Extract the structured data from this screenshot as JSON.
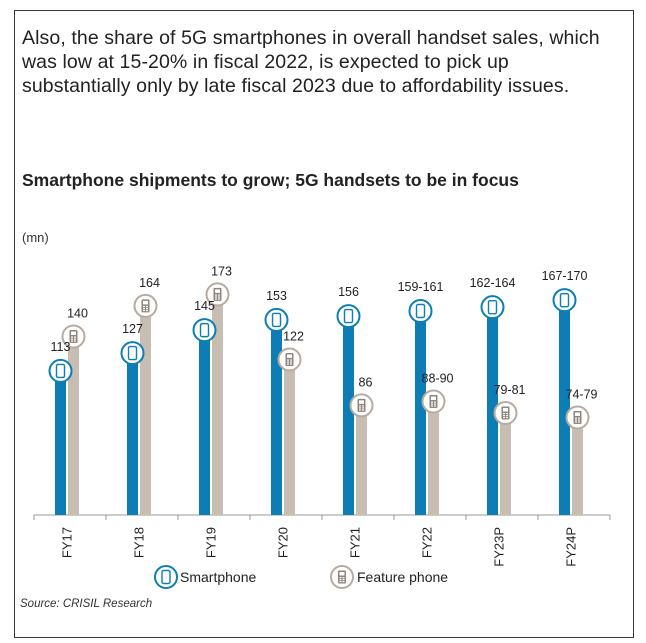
{
  "intro_text": "Also, the share of 5G smartphones in overall handset sales, which was low at 15-20% in fiscal 2022, is expected to pick up substantially only by late fiscal 2023 due to affordability issues.",
  "source": "Source: CRISIL Research",
  "colors": {
    "smartphone": "#0c7eb5",
    "feature_phone": "#c8bdb2",
    "text": "#222222"
  },
  "chart_data": {
    "type": "bar",
    "title": "Smartphone shipments to grow; 5G handsets to be in focus",
    "ylabel": "(mn)",
    "xlabel": "",
    "ylim": [
      0,
      180
    ],
    "grid": false,
    "legend_position": "bottom",
    "categories": [
      "FY17",
      "FY18",
      "FY19",
      "FY20",
      "FY21",
      "FY22",
      "FY23P",
      "FY24P"
    ],
    "series": [
      {
        "name": "Smartphone",
        "icon": "smartphone-icon",
        "values": [
          113,
          127,
          145,
          153,
          156,
          160,
          163,
          168.5
        ],
        "labels": [
          "113",
          "127",
          "145",
          "153",
          "156",
          "159-161",
          "162-164",
          "167-170"
        ]
      },
      {
        "name": "Feature phone",
        "icon": "feature-phone-icon",
        "values": [
          140,
          164,
          173,
          122,
          86,
          89,
          80,
          76.5
        ],
        "labels": [
          "140",
          "164",
          "173",
          "122",
          "86",
          "88-90",
          "79-81",
          "74-79"
        ]
      }
    ]
  }
}
